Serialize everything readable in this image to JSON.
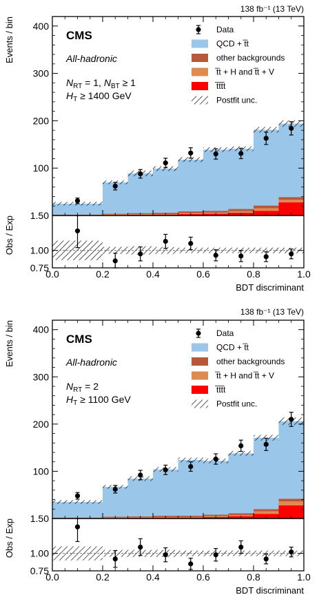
{
  "colors": {
    "qcd": "#9ac6ea",
    "other": "#b8583a",
    "ttHV": "#e08a4e",
    "tttt": "#ff0000",
    "data": "#000000"
  },
  "panels": [
    {
      "lumi": "138 fb⁻¹ (13 TeV)",
      "cms": "CMS",
      "channel": "All-hadronic",
      "selection_line1": "N_RT = 1, N_BT ≥ 1",
      "selection_line2": "H_T ≥ 1400 GeV",
      "ylabel": "Events / bin",
      "ratio_ylabel": "Obs / Exp",
      "xlabel": "BDT discriminant"
    },
    {
      "lumi": "138 fb⁻¹ (13 TeV)",
      "cms": "CMS",
      "channel": "All-hadronic",
      "selection_line1": "N_RT = 2",
      "selection_line2": "H_T ≥ 1100 GeV",
      "ylabel": "Events / bin",
      "ratio_ylabel": "Obs / Exp",
      "xlabel": "BDT discriminant"
    }
  ],
  "legend": [
    {
      "key": "data",
      "label": "Data"
    },
    {
      "key": "qcd",
      "label": "QCD + t̅t"
    },
    {
      "key": "other",
      "label": "other backgrounds"
    },
    {
      "key": "ttHV",
      "label": "t̅t + H and t̅t + V"
    },
    {
      "key": "tttt",
      "label": "t̅tt̅t"
    },
    {
      "key": "unc",
      "label": "Postfit unc."
    }
  ],
  "chart_data": [
    {
      "type": "bar",
      "stacked": true,
      "bin_edges": [
        0.0,
        0.2,
        0.3,
        0.4,
        0.5,
        0.6,
        0.7,
        0.8,
        0.9,
        1.0
      ],
      "xlim": [
        0.0,
        1.0
      ],
      "xticks": [
        "0.0",
        "0.2",
        "0.4",
        "0.6",
        "0.8",
        "1.0"
      ],
      "xtick_values": [
        0.0,
        0.2,
        0.4,
        0.6,
        0.8,
        1.0
      ],
      "ylim": [
        0,
        420
      ],
      "yticks": [
        "100",
        "200",
        "300",
        "400"
      ],
      "ytick_values": [
        100,
        200,
        300,
        400
      ],
      "ymin_label": "1.50",
      "series": [
        {
          "name": "tttt",
          "values": [
            0.5,
            1,
            1.5,
            2,
            3,
            4,
            6,
            10,
            28
          ]
        },
        {
          "name": "ttHV",
          "values": [
            0.5,
            1,
            1,
            1,
            2,
            2,
            3,
            5,
            5
          ]
        },
        {
          "name": "other",
          "values": [
            1,
            2,
            2.5,
            3,
            4,
            4,
            5,
            6,
            6
          ]
        },
        {
          "name": "qcd",
          "values": [
            23,
            66,
            84,
            93,
            109,
            129,
            127,
            160,
            155
          ]
        }
      ],
      "total": [
        25,
        70,
        89,
        99,
        118,
        139,
        141,
        181,
        194
      ],
      "unc": [
        4,
        4,
        6,
        5,
        5,
        5,
        5,
        6,
        7
      ],
      "data_y": [
        31,
        62,
        88,
        111,
        132,
        130,
        131,
        163,
        184
      ],
      "data_err": [
        6,
        8,
        9,
        10,
        11,
        11,
        11,
        13,
        14
      ],
      "ratio": {
        "ylim": [
          0.75,
          1.5
        ],
        "yticks": [
          "0.75",
          "1.00",
          "1.50"
        ],
        "ytick_values": [
          0.75,
          1.0,
          1.5
        ],
        "values": [
          1.28,
          0.85,
          0.95,
          1.13,
          1.1,
          0.93,
          0.92,
          0.91,
          0.95
        ],
        "err": [
          0.24,
          0.11,
          0.1,
          0.1,
          0.09,
          0.08,
          0.08,
          0.07,
          0.07
        ],
        "unc": [
          0.14,
          0.05,
          0.06,
          0.05,
          0.04,
          0.04,
          0.04,
          0.04,
          0.04
        ]
      }
    },
    {
      "type": "bar",
      "stacked": true,
      "bin_edges": [
        0.0,
        0.2,
        0.3,
        0.4,
        0.5,
        0.6,
        0.7,
        0.8,
        0.9,
        1.0
      ],
      "xlim": [
        0.0,
        1.0
      ],
      "xticks": [
        "0.0",
        "0.2",
        "0.4",
        "0.6",
        "0.8",
        "1.0"
      ],
      "xtick_values": [
        0.0,
        0.2,
        0.4,
        0.6,
        0.8,
        1.0
      ],
      "ylim": [
        0,
        420
      ],
      "yticks": [
        "100",
        "200",
        "300",
        "400"
      ],
      "ytick_values": [
        100,
        200,
        300,
        400
      ],
      "ymin_label": "1.50",
      "series": [
        {
          "name": "tttt",
          "values": [
            0.5,
            1,
            1.5,
            2,
            2,
            3,
            5,
            10,
            28
          ]
        },
        {
          "name": "ttHV",
          "values": [
            0.5,
            1,
            1,
            1,
            1,
            2,
            2,
            5,
            8
          ]
        },
        {
          "name": "other",
          "values": [
            1,
            2,
            2,
            3,
            3,
            3,
            4,
            5,
            6
          ]
        },
        {
          "name": "qcd",
          "values": [
            33,
            63,
            80,
            98,
            118,
            114,
            127,
            151,
            164
          ]
        }
      ],
      "total": [
        35,
        67,
        84.5,
        104,
        124,
        122,
        138,
        171,
        206
      ],
      "unc": [
        4,
        4,
        5,
        5,
        5,
        5,
        5,
        6,
        8
      ],
      "data_y": [
        48,
        62,
        92,
        103,
        110,
        126,
        154,
        157,
        210
      ],
      "data_err": [
        7,
        8,
        10,
        10,
        10,
        11,
        12,
        13,
        15
      ],
      "ratio": {
        "ylim": [
          0.75,
          1.5
        ],
        "yticks": [
          "0.75",
          "1.00",
          "1.50"
        ],
        "ytick_values": [
          0.75,
          1.0,
          1.5
        ],
        "values": [
          1.38,
          0.92,
          1.09,
          0.98,
          0.85,
          0.98,
          1.09,
          0.92,
          1.02
        ],
        "err": [
          0.21,
          0.12,
          0.12,
          0.1,
          0.08,
          0.09,
          0.09,
          0.07,
          0.07
        ],
        "unc": [
          0.1,
          0.05,
          0.05,
          0.05,
          0.04,
          0.04,
          0.04,
          0.04,
          0.04
        ]
      }
    }
  ]
}
